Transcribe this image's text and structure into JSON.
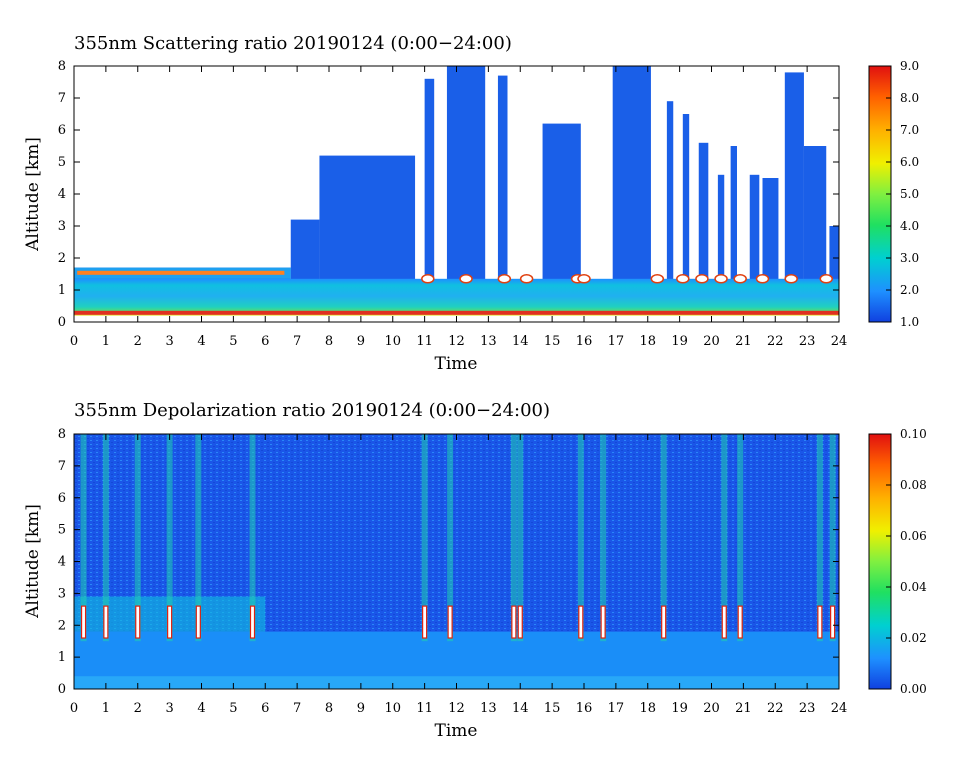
{
  "chart_data": [
    {
      "type": "heatmap",
      "title": "355nm Scattering ratio  20190124 (0:00−24:00)",
      "xlabel": "Time",
      "ylabel": "Altitude [km]",
      "xlim": [
        0,
        24
      ],
      "ylim": [
        0,
        8
      ],
      "x_ticks": [
        "0",
        "1",
        "2",
        "3",
        "4",
        "5",
        "6",
        "7",
        "8",
        "9",
        "10",
        "11",
        "12",
        "13",
        "14",
        "15",
        "16",
        "17",
        "18",
        "19",
        "20",
        "21",
        "22",
        "23",
        "24"
      ],
      "y_ticks": [
        "0",
        "1",
        "2",
        "3",
        "4",
        "5",
        "6",
        "7",
        "8"
      ],
      "colorbar": {
        "range": [
          1.0,
          9.0
        ],
        "ticks": [
          "1.0",
          "2.0",
          "3.0",
          "4.0",
          "5.0",
          "6.0",
          "7.0",
          "8.0",
          "9.0"
        ],
        "colors": [
          "#1040e0",
          "#1e90ff",
          "#00d0d0",
          "#20e060",
          "#80f040",
          "#f0f000",
          "#ffb000",
          "#ff6000",
          "#e01010"
        ]
      },
      "columns": [
        {
          "x": [
            0.0,
            6.8
          ],
          "top": 1.7,
          "base_top": 1.3,
          "note": "low aerosol layer, high ratio near 1.5 km"
        },
        {
          "x": [
            6.8,
            7.7
          ],
          "top": 3.2
        },
        {
          "x": [
            7.7,
            10.7
          ],
          "top": 5.2
        },
        {
          "x": [
            11.0,
            11.3
          ],
          "top": 7.6
        },
        {
          "x": [
            11.7,
            12.9
          ],
          "top": 8.0
        },
        {
          "x": [
            13.3,
            13.6
          ],
          "top": 7.7
        },
        {
          "x": [
            14.7,
            15.9
          ],
          "top": 6.2
        },
        {
          "x": [
            16.9,
            18.1
          ],
          "top": 8.0
        },
        {
          "x": [
            18.6,
            18.8
          ],
          "top": 6.9
        },
        {
          "x": [
            19.1,
            19.3
          ],
          "top": 6.5
        },
        {
          "x": [
            19.6,
            19.9
          ],
          "top": 5.6
        },
        {
          "x": [
            20.2,
            20.4
          ],
          "top": 4.6
        },
        {
          "x": [
            20.6,
            20.8
          ],
          "top": 5.5
        },
        {
          "x": [
            21.2,
            21.5
          ],
          "top": 4.6
        },
        {
          "x": [
            21.6,
            22.1
          ],
          "top": 4.5
        },
        {
          "x": [
            22.3,
            22.9
          ],
          "top": 7.8
        },
        {
          "x": [
            22.9,
            23.6
          ],
          "top": 5.5
        },
        {
          "x": [
            23.7,
            24.0
          ],
          "top": 3.0
        }
      ]
    },
    {
      "type": "heatmap",
      "title": "355nm Depolarization ratio  20190124 (0:00−24:00)",
      "xlabel": "Time",
      "ylabel": "Altitude [km]",
      "xlim": [
        0,
        24
      ],
      "ylim": [
        0,
        8
      ],
      "x_ticks": [
        "0",
        "1",
        "2",
        "3",
        "4",
        "5",
        "6",
        "7",
        "8",
        "9",
        "10",
        "11",
        "12",
        "13",
        "14",
        "15",
        "16",
        "17",
        "18",
        "19",
        "20",
        "21",
        "22",
        "23",
        "24"
      ],
      "y_ticks": [
        "0",
        "1",
        "2",
        "3",
        "4",
        "5",
        "6",
        "7",
        "8"
      ],
      "colorbar": {
        "range": [
          0.0,
          0.1
        ],
        "ticks": [
          "0.00",
          "0.02",
          "0.04",
          "0.06",
          "0.08",
          "0.10"
        ],
        "colors": [
          "#1040e0",
          "#1e90ff",
          "#00d0d0",
          "#20e060",
          "#80f040",
          "#f0f000",
          "#ffb000",
          "#ff6000",
          "#e01010"
        ]
      },
      "streaks": [
        0.3,
        1.0,
        2.0,
        3.0,
        3.9,
        5.6,
        11.0,
        11.8,
        13.8,
        14.0,
        15.9,
        16.6,
        18.5,
        20.4,
        20.9,
        23.4,
        23.8
      ]
    }
  ]
}
